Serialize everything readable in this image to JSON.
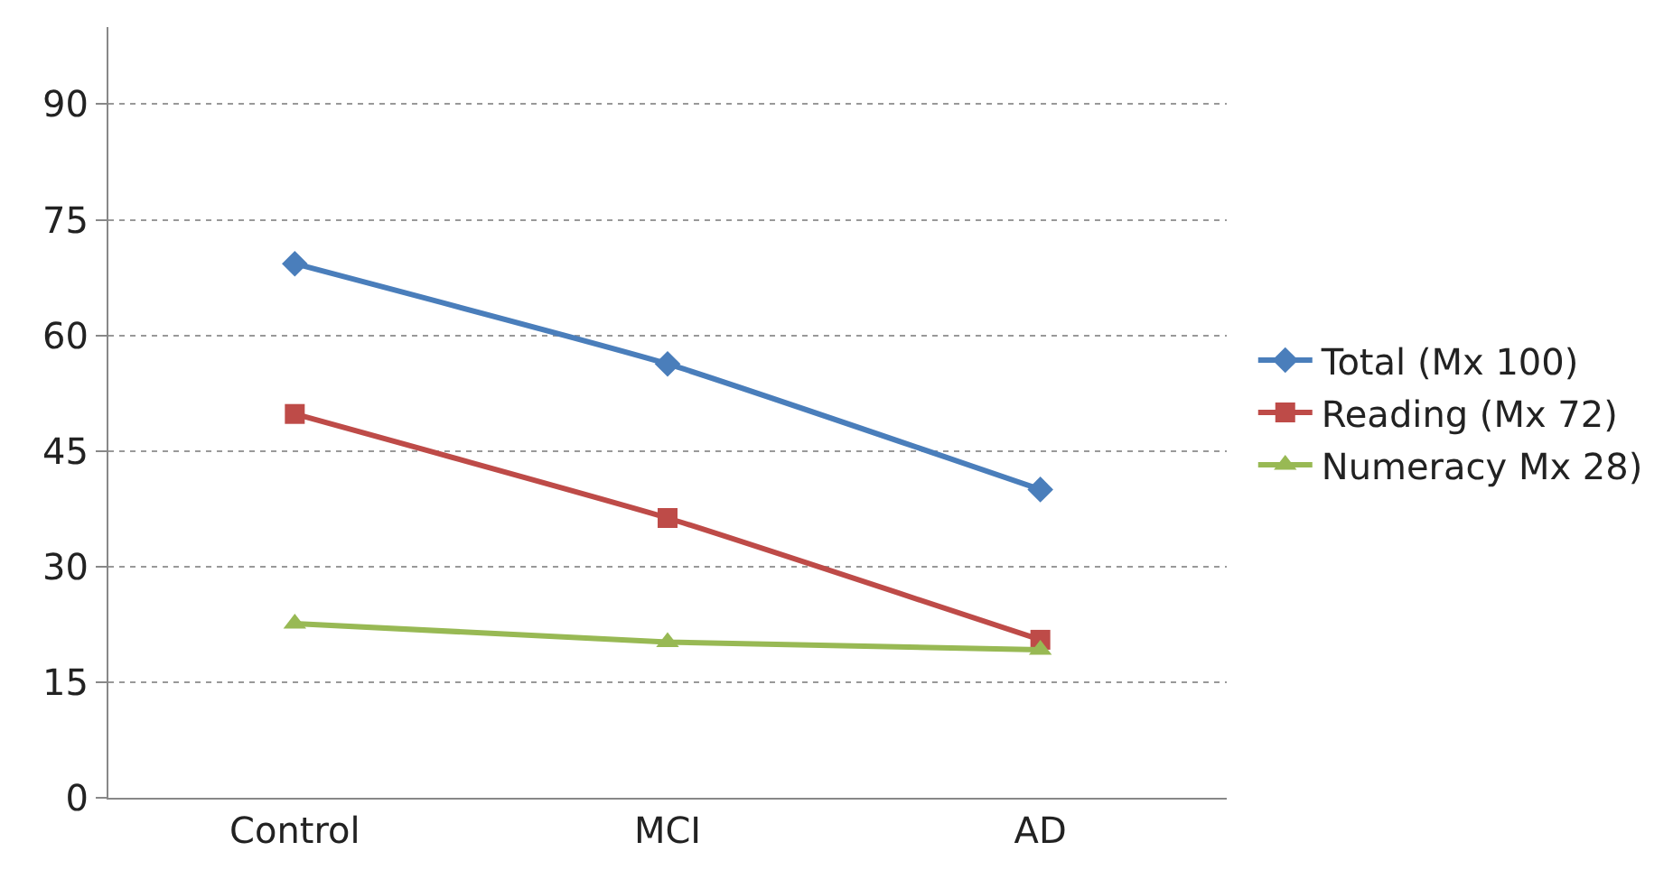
{
  "chart_data": {
    "type": "line",
    "categories": [
      "Control",
      "MCI",
      "AD"
    ],
    "series": [
      {
        "name": "Total (Mx 100)",
        "color": "#4a7ebb",
        "marker": "diamond",
        "values": [
          69.3,
          56.3,
          40
        ]
      },
      {
        "name": "Reading (Mx 72)",
        "color": "#be4b48",
        "marker": "square",
        "values": [
          49.8,
          36.3,
          20.5
        ]
      },
      {
        "name": "Numeracy Mx 28)",
        "color": "#98b954",
        "marker": "triangle",
        "values": [
          22.6,
          20.2,
          19.2
        ]
      }
    ],
    "ylim": [
      0,
      100
    ],
    "yticks": [
      0,
      15,
      30,
      45,
      60,
      75,
      90
    ],
    "grid": "y",
    "legend": "right"
  }
}
